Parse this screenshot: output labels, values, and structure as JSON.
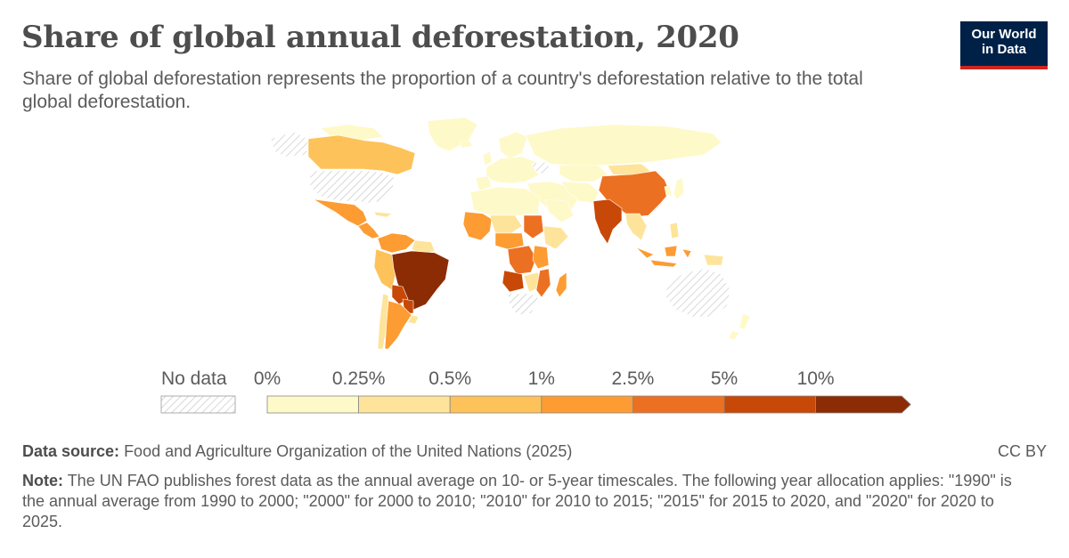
{
  "header": {
    "title": "Share of global annual deforestation, 2020",
    "subtitle": "Share of global deforestation represents the proportion of a country's deforestation relative to the total global deforestation."
  },
  "logo": {
    "line1": "Our World",
    "line2": "in Data",
    "bg_color": "#002147",
    "accent_color": "#ce261e"
  },
  "legend": {
    "no_data_label": "No data",
    "bins": [
      {
        "label": "0%",
        "color": "#fef9c8"
      },
      {
        "label": "0.25%",
        "color": "#fde49a"
      },
      {
        "label": "0.5%",
        "color": "#fdc25a"
      },
      {
        "label": "1%",
        "color": "#fc9c33"
      },
      {
        "label": "2.5%",
        "color": "#ec7022"
      },
      {
        "label": "5%",
        "color": "#c84808"
      },
      {
        "label": "10%",
        "color": "#8c2c04"
      }
    ]
  },
  "chart_data": {
    "type": "choropleth",
    "metric": "Share of global annual deforestation",
    "year": 2020,
    "bins": [
      "0%",
      "0.25%",
      "0.5%",
      "1%",
      "2.5%",
      "5%",
      "10%"
    ],
    "regions": [
      {
        "name": "Brazil",
        "bin": ">10%"
      },
      {
        "name": "Angola",
        "bin": "5-10%"
      },
      {
        "name": "Bolivia",
        "bin": "5-10%"
      },
      {
        "name": "India",
        "bin": "5-10%"
      },
      {
        "name": "China",
        "bin": "2.5-5%"
      },
      {
        "name": "Democratic Republic of Congo",
        "bin": "2.5-5%"
      },
      {
        "name": "Mozambique",
        "bin": "2.5-5%"
      },
      {
        "name": "Paraguay",
        "bin": "2.5-5%"
      },
      {
        "name": "Argentina",
        "bin": "1-2.5%"
      },
      {
        "name": "Mexico",
        "bin": "1-2.5%"
      },
      {
        "name": "Indonesia",
        "bin": "1-2.5%"
      },
      {
        "name": "Tanzania",
        "bin": "1-2.5%"
      },
      {
        "name": "Canada",
        "bin": "0.5-1%"
      },
      {
        "name": "Colombia",
        "bin": "0.5-1%"
      },
      {
        "name": "Peru",
        "bin": "0.25-0.5%"
      },
      {
        "name": "Russia",
        "bin": "0-0.25%"
      },
      {
        "name": "Australia",
        "bin": "No data"
      },
      {
        "name": "United States",
        "bin": "No data"
      },
      {
        "name": "South Africa",
        "bin": "No data"
      },
      {
        "name": "Greenland",
        "bin": "No data"
      }
    ]
  },
  "footer": {
    "source_label": "Data source:",
    "source_text": "Food and Agriculture Organization of the United Nations (2025)",
    "license": "CC BY",
    "note_label": "Note:",
    "note_text": "The UN FAO publishes forest data as the annual average on 10- or 5-year timescales. The following year allocation applies: \"1990\" is the annual average from 1990 to 2000; \"2000\" for 2000 to 2010; \"2010\" for 2010 to 2015; \"2015\" for 2015 to 2020, and \"2020\" for 2020 to 2025."
  }
}
